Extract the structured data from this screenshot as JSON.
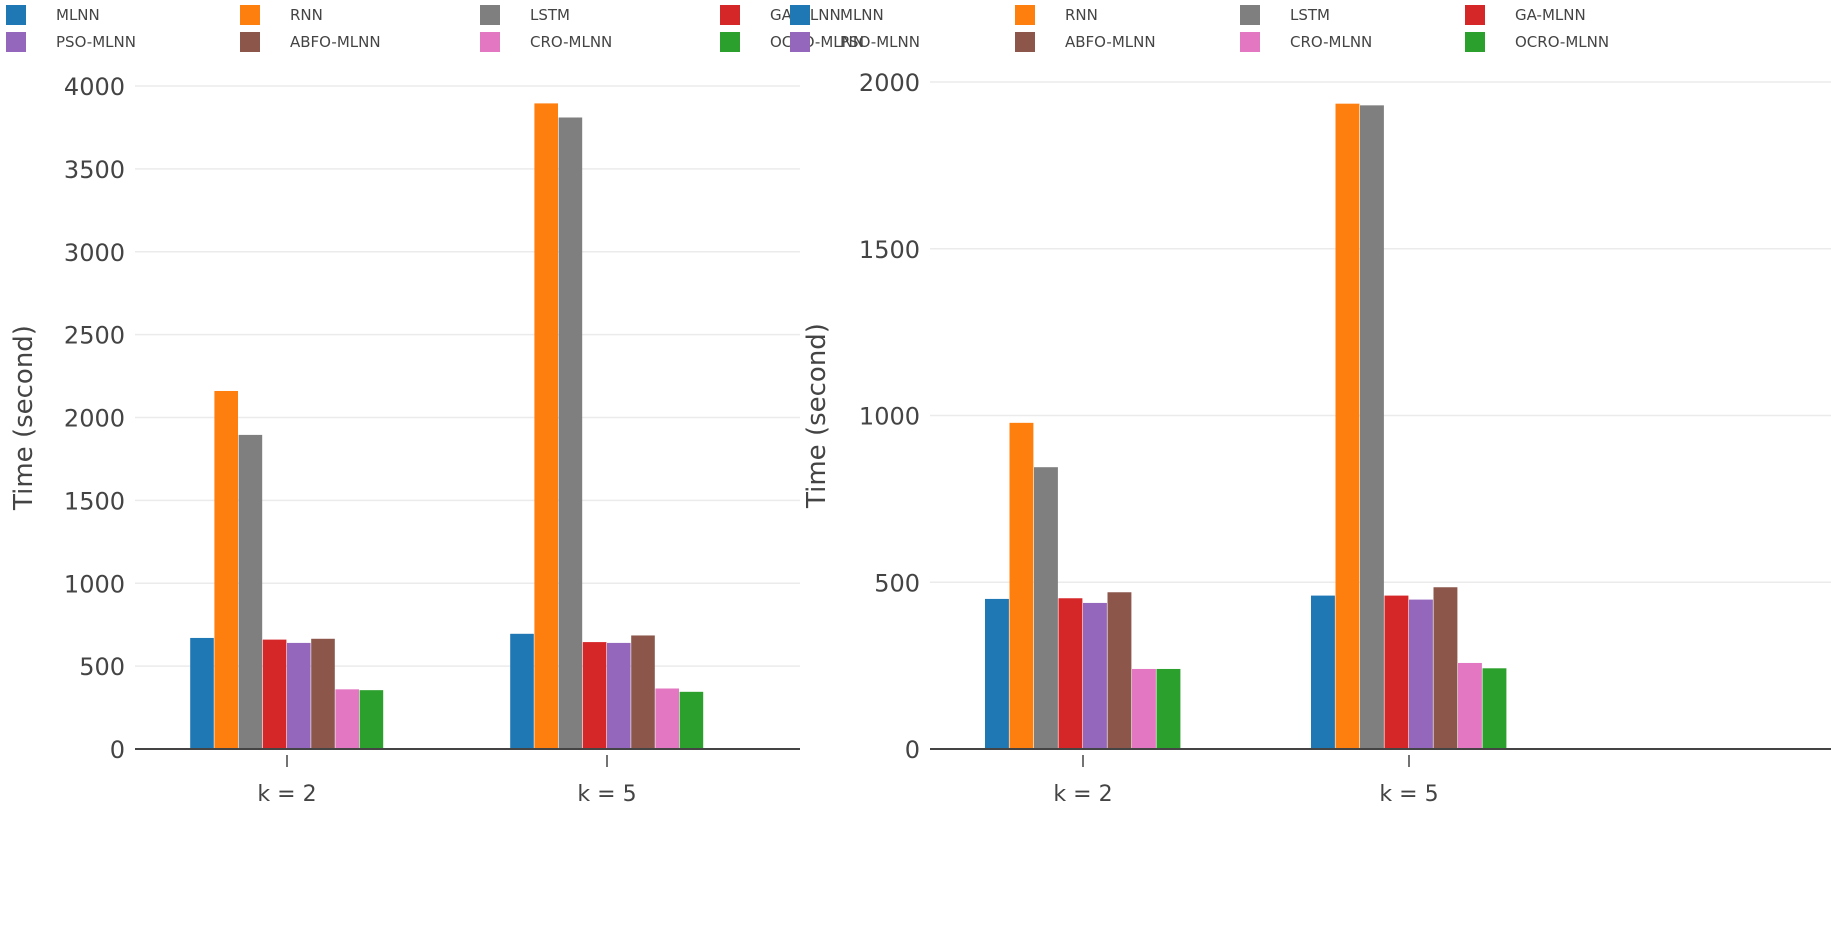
{
  "legend": {
    "entries": [
      {
        "name": "MLNN",
        "color": "#1f77b4"
      },
      {
        "name": "RNN",
        "color": "#ff7f0e"
      },
      {
        "name": "LSTM",
        "color": "#7f7f7f"
      },
      {
        "name": "GA-MLNN",
        "color": "#d62728"
      },
      {
        "name": "PSO-MLNN",
        "color": "#9467bd"
      },
      {
        "name": "ABFO-MLNN",
        "color": "#8c564b"
      },
      {
        "name": "CRO-MLNN",
        "color": "#e377c2"
      },
      {
        "name": "OCRO-MLNN",
        "color": "#2ca02c"
      }
    ]
  },
  "chart_data": [
    {
      "type": "bar",
      "title": "",
      "xlabel": "",
      "ylabel": "Time (second)",
      "categories": [
        "k = 2",
        "k = 5"
      ],
      "ylim": [
        0,
        4000
      ],
      "yticks": [
        0,
        500,
        1000,
        1500,
        2000,
        2500,
        3000,
        3500,
        4000
      ],
      "grid": true,
      "legend_position": "top",
      "series": [
        {
          "name": "MLNN",
          "values": [
            670,
            695
          ]
        },
        {
          "name": "RNN",
          "values": [
            2160,
            3895
          ]
        },
        {
          "name": "LSTM",
          "values": [
            1895,
            3810
          ]
        },
        {
          "name": "GA-MLNN",
          "values": [
            660,
            645
          ]
        },
        {
          "name": "PSO-MLNN",
          "values": [
            640,
            640
          ]
        },
        {
          "name": "ABFO-MLNN",
          "values": [
            665,
            685
          ]
        },
        {
          "name": "CRO-MLNN",
          "values": [
            360,
            365
          ]
        },
        {
          "name": "OCRO-MLNN",
          "values": [
            355,
            345
          ]
        }
      ]
    },
    {
      "type": "bar",
      "title": "",
      "xlabel": "",
      "ylabel": "Time (second)",
      "categories": [
        "k = 2",
        "k = 5"
      ],
      "ylim": [
        0,
        2000
      ],
      "yticks": [
        0,
        500,
        1000,
        1500,
        2000
      ],
      "grid": true,
      "legend_position": "top",
      "series": [
        {
          "name": "MLNN",
          "values": [
            450,
            460
          ]
        },
        {
          "name": "RNN",
          "values": [
            978,
            1935
          ]
        },
        {
          "name": "LSTM",
          "values": [
            845,
            1930
          ]
        },
        {
          "name": "GA-MLNN",
          "values": [
            452,
            460
          ]
        },
        {
          "name": "PSO-MLNN",
          "values": [
            438,
            448
          ]
        },
        {
          "name": "ABFO-MLNN",
          "values": [
            470,
            485
          ]
        },
        {
          "name": "CRO-MLNN",
          "values": [
            240,
            258
          ]
        },
        {
          "name": "OCRO-MLNN",
          "values": [
            240,
            242
          ]
        }
      ]
    }
  ]
}
